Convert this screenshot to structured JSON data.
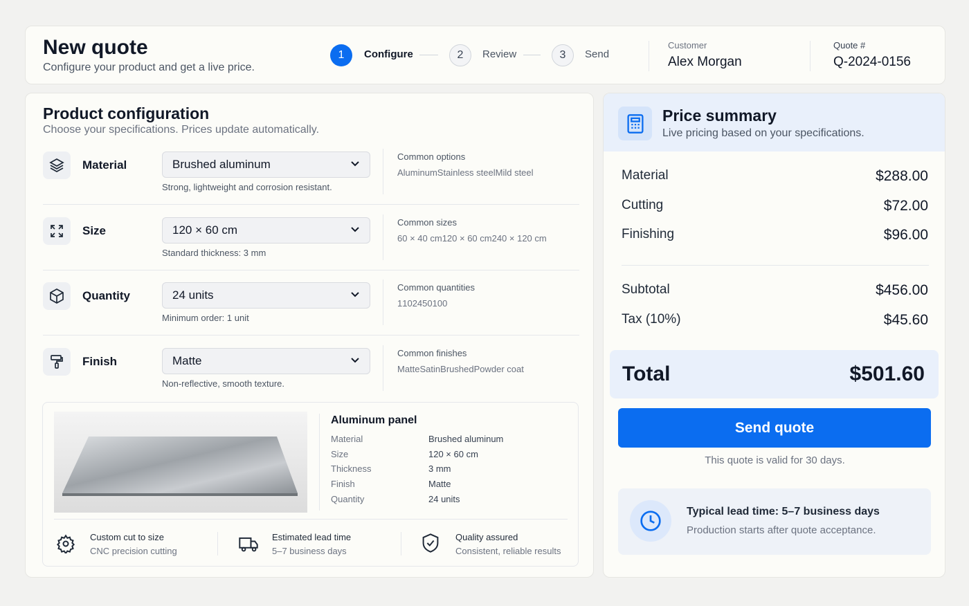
{
  "header": {
    "title": "New quote",
    "subtitle": "Configure your product and get a live price.",
    "steps": [
      {
        "number": "1",
        "label": "Configure"
      },
      {
        "number": "2",
        "label": "Review"
      },
      {
        "number": "3",
        "label": "Send"
      }
    ],
    "customer": {
      "label": "Customer",
      "value": "Alex Morgan"
    },
    "quote": {
      "label": "Quote #",
      "value": "Q-2024-0156"
    }
  },
  "config": {
    "title": "Product configuration",
    "subtitle": "Choose your specifications. Prices update automatically.",
    "rows": [
      {
        "label": "Material",
        "value": "Brushed aluminum",
        "hint": "Strong, lightweight and corrosion resistant.",
        "options_title": "Common options",
        "options": [
          "Aluminum",
          "Stainless steel",
          "Mild steel"
        ]
      },
      {
        "label": "Size",
        "value": "120 × 60 cm",
        "hint": "Standard thickness: 3 mm",
        "options_title": "Common sizes",
        "options": [
          "60 × 40 cm",
          "120 × 60 cm",
          "240 × 120 cm"
        ]
      },
      {
        "label": "Quantity",
        "value": "24 units",
        "hint": "Minimum order: 1 unit",
        "options_title": "Common quantities",
        "options": [
          "1",
          "10",
          "24",
          "50",
          "100"
        ]
      },
      {
        "label": "Finish",
        "value": "Matte",
        "hint": "Non-reflective, smooth texture.",
        "options_title": "Common finishes",
        "options": [
          "Matte",
          "Satin",
          "Brushed",
          "Powder coat"
        ]
      }
    ]
  },
  "preview": {
    "title": "Aluminum panel",
    "specs": [
      [
        "Material",
        "Brushed aluminum"
      ],
      [
        "Size",
        "120 × 60 cm"
      ],
      [
        "Thickness",
        "3 mm"
      ],
      [
        "Finish",
        "Matte"
      ],
      [
        "Quantity",
        "24 units"
      ]
    ]
  },
  "features": [
    {
      "title": "Custom cut to size",
      "text": "CNC precision cutting"
    },
    {
      "title": "Estimated lead time",
      "text": "5–7 business days"
    },
    {
      "title": "Quality assured",
      "text": "Consistent, reliable results"
    }
  ],
  "summary": {
    "title": "Price summary",
    "subtitle": "Live pricing based on your specifications.",
    "lines": [
      {
        "label": "Material",
        "value": "$288.00"
      },
      {
        "label": "Cutting",
        "value": "$72.00"
      },
      {
        "label": "Finishing",
        "value": "$96.00"
      }
    ],
    "totals": [
      {
        "label": "Subtotal",
        "value": "$456.00"
      },
      {
        "label": "Tax (10%)",
        "value": "$45.60"
      }
    ],
    "total": {
      "label": "Total",
      "value": "$501.60"
    },
    "button": "Send quote",
    "note": "This quote is valid for 30 days.",
    "lead": {
      "title": "Typical lead time: 5–7 business days",
      "text": "Production starts after quote acceptance."
    }
  }
}
